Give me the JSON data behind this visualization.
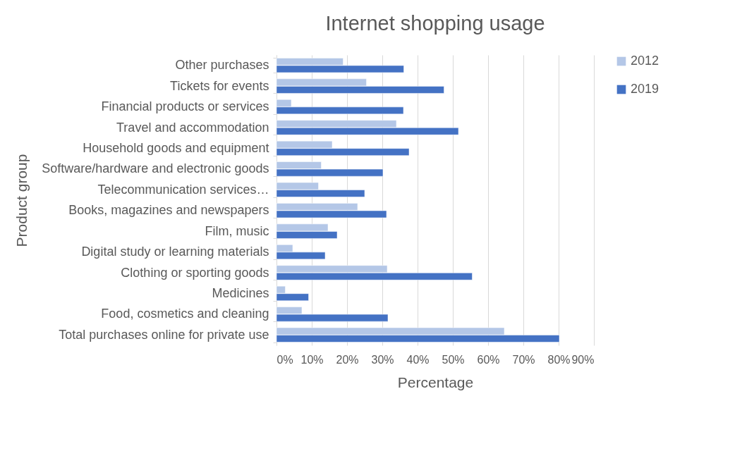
{
  "chart_data": {
    "type": "bar",
    "orientation": "horizontal",
    "title": "Internet shopping usage",
    "xlabel": "Percentage",
    "ylabel": "Product group",
    "categories": [
      "Other purchases",
      "Tickets for events",
      "Financial products or services",
      "Travel and accommodation",
      "Household goods and equipment",
      "Software/hardware and electronic goods",
      "Telecommunication services…",
      "Books, magazines and newspapers",
      "Film, music",
      "Digital study or learning materials",
      "Clothing or sporting goods",
      "Medicines",
      "Food, cosmetics and cleaning",
      "Total purchases online for private use"
    ],
    "series": [
      {
        "name": "2012",
        "color": "#b4c7e7",
        "values": [
          18.9,
          25.5,
          4.2,
          34.0,
          15.8,
          12.7,
          11.9,
          23.0,
          14.6,
          4.6,
          31.4,
          2.5,
          7.2,
          64.6
        ]
      },
      {
        "name": "2019",
        "color": "#4472c4",
        "values": [
          36.1,
          47.5,
          36.0,
          51.6,
          37.6,
          30.2,
          25.0,
          31.2,
          17.2,
          13.8,
          55.5,
          9.1,
          31.6,
          80.2
        ]
      }
    ],
    "xlim": [
      0,
      90
    ],
    "xticks": [
      {
        "value": 0,
        "label": "0%"
      },
      {
        "value": 10,
        "label": "10%"
      },
      {
        "value": 20,
        "label": "20%"
      },
      {
        "value": 30,
        "label": "30%"
      },
      {
        "value": 40,
        "label": "40%"
      },
      {
        "value": 50,
        "label": "50%"
      },
      {
        "value": 60,
        "label": "60%"
      },
      {
        "value": 70,
        "label": "70%"
      },
      {
        "value": 80,
        "label": "80%"
      },
      {
        "value": 90,
        "label": "90%"
      }
    ],
    "grid": "x",
    "legend": "right"
  }
}
